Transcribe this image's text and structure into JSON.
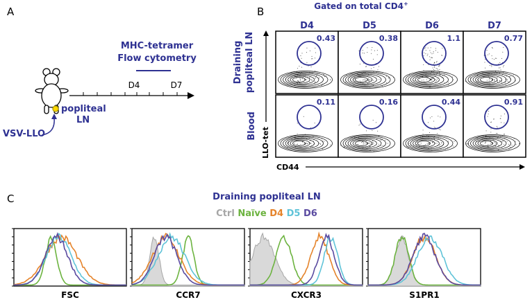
{
  "panel_a": {
    "label": "A",
    "timeline_title": [
      "MHC-tetramer",
      "Flow cytometry"
    ],
    "ticks": [
      "D4",
      "D7"
    ],
    "site": [
      "popliteal",
      "LN"
    ],
    "injection": "VSV-LLO"
  },
  "panel_b": {
    "label": "B",
    "title": "Gated on total CD4",
    "title_sup": "+",
    "columns": [
      "D4",
      "D5",
      "D6",
      "D7"
    ],
    "rows": [
      {
        "label": [
          "Draining",
          "popliteal LN"
        ],
        "values": [
          "0.43",
          "0.38",
          "1.1",
          "0.77"
        ]
      },
      {
        "label": [
          "Blood"
        ],
        "values": [
          "0.11",
          "0.16",
          "0.44",
          "0.91"
        ]
      }
    ],
    "y_axis": "LLO-tet",
    "x_axis": "CD44"
  },
  "panel_c": {
    "label": "C",
    "title": "Draining popliteal LN",
    "legend": [
      "Ctrl",
      "Naïve",
      "D4",
      "D5",
      "D6"
    ],
    "markers": [
      "FSC",
      "CCR7",
      "CXCR3",
      "S1PR1"
    ]
  }
}
